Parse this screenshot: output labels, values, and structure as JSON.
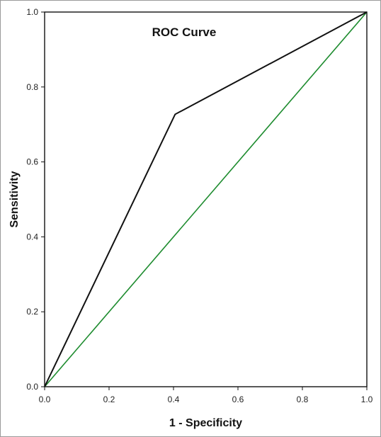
{
  "chart_data": {
    "type": "line",
    "title": "ROC Curve",
    "xlabel": "1 - Specificity",
    "ylabel": "Sensitivity",
    "xlim": [
      0.0,
      1.0
    ],
    "ylim": [
      0.0,
      1.0
    ],
    "xticks": [
      "0.0",
      "0.2",
      "0.4",
      "0.6",
      "0.8",
      "1.0"
    ],
    "yticks": [
      "0.0",
      "0.2",
      "0.4",
      "0.6",
      "0.8",
      "1.0"
    ],
    "grid": false,
    "legend": "none",
    "series": [
      {
        "x": [
          0.0,
          0.405,
          1.0
        ],
        "y": [
          0.0,
          0.727,
          1.0
        ],
        "color": "#111111"
      },
      {
        "x": [
          0.0,
          1.0
        ],
        "y": [
          0.0,
          1.0
        ],
        "color": "#1e8c2f"
      }
    ]
  }
}
